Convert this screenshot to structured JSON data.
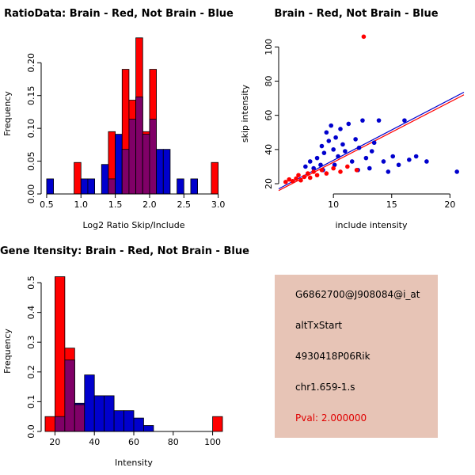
{
  "page": {
    "background": "#FFFFFF"
  },
  "chart_data": [
    {
      "type": "histogram",
      "title": "RatioData: Brain - Red, Not Brain - Blue",
      "xlabel": "Log2 Ratio Skip/Include",
      "ylabel": "Frequency",
      "bin_start": 0.5,
      "bin_width": 0.1,
      "xlim": [
        0.42,
        3.12
      ],
      "ylim": [
        0,
        0.245
      ],
      "xticks": [
        0.5,
        1.0,
        1.5,
        2.0,
        2.5,
        3.0
      ],
      "xtick_labels": [
        "0.5",
        "1.0",
        "1.5",
        "2.0",
        "2.5",
        "3.0"
      ],
      "yticks": [
        0,
        0.05,
        0.1,
        0.15,
        0.2
      ],
      "ytick_labels": [
        "0.00",
        "0.05",
        "0.10",
        "0.15",
        "0.20"
      ],
      "overlap_color": "#800067",
      "series": [
        {
          "name": "Not Brain",
          "color": "#0000CD",
          "values": [
            0.023,
            0,
            0,
            0,
            0,
            0.023,
            0.023,
            0,
            0.045,
            0.023,
            0.091,
            0.068,
            0.114,
            0.148,
            0.091,
            0.114,
            0.068,
            0.068,
            0,
            0.023,
            0,
            0.023,
            0,
            0,
            0
          ]
        },
        {
          "name": "Brain",
          "color": "#FF0000",
          "values": [
            0,
            0,
            0,
            0,
            0.048,
            0,
            0,
            0,
            0,
            0.095,
            0,
            0.19,
            0.143,
            0.238,
            0.095,
            0.19,
            0,
            0,
            0,
            0,
            0,
            0,
            0,
            0,
            0.048
          ]
        }
      ]
    },
    {
      "type": "scatter",
      "title": "Brain - Red, Not Brain - Blue",
      "xlabel": "include intensity",
      "ylabel": "skip intensity",
      "xlim": [
        5.3,
        21.2
      ],
      "ylim": [
        14,
        108
      ],
      "xticks": [
        10,
        15,
        20
      ],
      "xtick_labels": [
        "10",
        "15",
        "20"
      ],
      "yticks": [
        20,
        40,
        60,
        80,
        100
      ],
      "ytick_labels": [
        "20",
        "40",
        "60",
        "80",
        "100"
      ],
      "series": [
        {
          "name": "Not Brain",
          "color": "#0000CD",
          "points": [
            [
              7.6,
              30
            ],
            [
              8.0,
              33
            ],
            [
              8.3,
              29
            ],
            [
              8.6,
              35
            ],
            [
              8.9,
              31
            ],
            [
              9.0,
              42
            ],
            [
              9.2,
              38
            ],
            [
              9.4,
              50
            ],
            [
              9.6,
              45
            ],
            [
              9.8,
              54
            ],
            [
              10.0,
              40
            ],
            [
              10.2,
              47
            ],
            [
              10.4,
              36
            ],
            [
              10.6,
              52
            ],
            [
              10.8,
              43
            ],
            [
              11.0,
              39
            ],
            [
              11.3,
              55
            ],
            [
              11.6,
              33
            ],
            [
              11.9,
              46
            ],
            [
              12.2,
              41
            ],
            [
              12.5,
              57
            ],
            [
              12.8,
              35
            ],
            [
              13.1,
              29
            ],
            [
              13.5,
              44
            ],
            [
              13.9,
              57
            ],
            [
              14.3,
              33
            ],
            [
              14.7,
              27
            ],
            [
              15.1,
              36
            ],
            [
              15.6,
              31
            ],
            [
              16.1,
              57
            ],
            [
              16.5,
              34
            ],
            [
              17.1,
              36
            ],
            [
              18.0,
              33
            ],
            [
              20.6,
              27
            ],
            [
              9.1,
              28
            ],
            [
              10.1,
              31
            ],
            [
              12.1,
              28
            ],
            [
              13.3,
              39
            ]
          ]
        },
        {
          "name": "Brain",
          "color": "#FF0000",
          "points": [
            [
              5.9,
              21
            ],
            [
              6.2,
              22.5
            ],
            [
              6.5,
              21.5
            ],
            [
              6.8,
              23
            ],
            [
              7.0,
              25
            ],
            [
              7.2,
              22
            ],
            [
              7.5,
              24
            ],
            [
              7.8,
              26
            ],
            [
              8.0,
              23.5
            ],
            [
              8.3,
              27
            ],
            [
              8.6,
              25
            ],
            [
              9.0,
              28
            ],
            [
              9.4,
              26
            ],
            [
              10.0,
              29
            ],
            [
              10.6,
              27
            ],
            [
              11.2,
              30
            ],
            [
              12.0,
              28
            ],
            [
              12.6,
              106
            ]
          ]
        }
      ],
      "lines": [
        {
          "color": "#0000CD",
          "x": [
            5.3,
            21.2
          ],
          "y": [
            17.0,
            73.5
          ]
        },
        {
          "color": "#FF0000",
          "x": [
            5.3,
            21.2
          ],
          "y": [
            16.0,
            72.0
          ]
        }
      ]
    },
    {
      "type": "histogram",
      "title": "Gene Itensity: Brain - Red, Not Brain - Blue",
      "xlabel": "Intensity",
      "ylabel": "Frequency",
      "bin_start": 15,
      "bin_width": 5,
      "xlim": [
        13,
        107
      ],
      "ylim": [
        0,
        0.54
      ],
      "xticks": [
        20,
        40,
        60,
        80,
        100
      ],
      "xtick_labels": [
        "20",
        "40",
        "60",
        "80",
        "100"
      ],
      "yticks": [
        0,
        0.1,
        0.2,
        0.3,
        0.4,
        0.5
      ],
      "ytick_labels": [
        "0.0",
        "0.1",
        "0.2",
        "0.3",
        "0.4",
        "0.5"
      ],
      "overlap_color": "#800067",
      "series": [
        {
          "name": "Not Brain",
          "color": "#0000CD",
          "values": [
            0,
            0.05,
            0.24,
            0.095,
            0.19,
            0.12,
            0.12,
            0.07,
            0.07,
            0.045,
            0.02,
            0,
            0,
            0,
            0,
            0,
            0,
            0
          ]
        },
        {
          "name": "Brain",
          "color": "#FF0000",
          "values": [
            0.05,
            0.52,
            0.28,
            0.09,
            0,
            0,
            0,
            0,
            0,
            0,
            0,
            0,
            0,
            0,
            0,
            0,
            0,
            0.05
          ]
        }
      ]
    }
  ],
  "info_box": {
    "background": "#E7C4B6",
    "probe_id": "G6862700@J908084@i_at",
    "event_type": "altTxStart",
    "gene_symbol": "4930418P06Rik",
    "location": "chr1.659-1.s",
    "pval_label": "Pval: 2.000000",
    "pval_color": "#E00000"
  }
}
